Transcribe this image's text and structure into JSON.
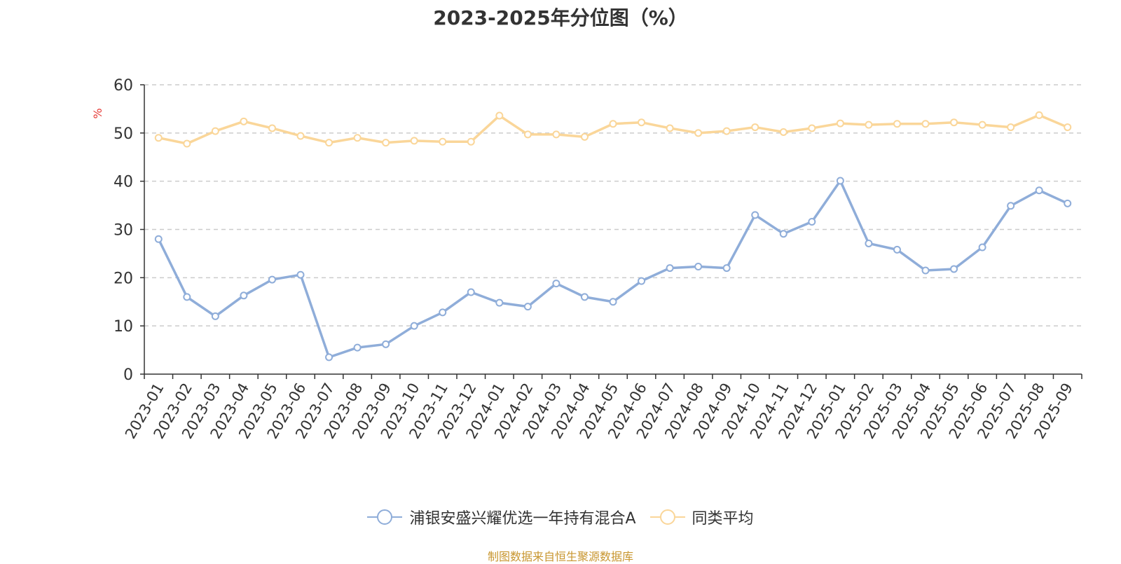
{
  "chart_data": {
    "type": "line",
    "title": "2023-2025年分位图（%）",
    "ylabel": "%",
    "xlabel": "",
    "ylim": [
      0,
      60
    ],
    "yticks": [
      0,
      10,
      20,
      30,
      40,
      50,
      60
    ],
    "grid": true,
    "legend_position": "bottom",
    "categories": [
      "2023-01",
      "2023-02",
      "2023-03",
      "2023-04",
      "2023-05",
      "2023-06",
      "2023-07",
      "2023-08",
      "2023-09",
      "2023-10",
      "2023-11",
      "2023-12",
      "2024-01",
      "2024-02",
      "2024-03",
      "2024-04",
      "2024-05",
      "2024-06",
      "2024-07",
      "2024-08",
      "2024-09",
      "2024-10",
      "2024-11",
      "2024-12",
      "2025-01",
      "2025-02",
      "2025-03",
      "2025-04",
      "2025-05",
      "2025-06",
      "2025-07",
      "2025-08",
      "2025-09"
    ],
    "series": [
      {
        "name": "浦银安盛兴耀优选一年持有混合A",
        "color": "#8fadd9",
        "values": [
          28.0,
          16.0,
          12.0,
          16.3,
          19.6,
          20.6,
          3.5,
          5.5,
          6.2,
          10.0,
          12.8,
          17.0,
          14.8,
          14.0,
          18.8,
          16.0,
          15.0,
          19.3,
          22.0,
          22.3,
          22.0,
          33.0,
          29.1,
          31.6,
          40.1,
          27.1,
          25.8,
          21.5,
          21.8,
          26.3,
          34.9,
          38.1,
          35.4
        ]
      },
      {
        "name": "同类平均",
        "color": "#fad699",
        "values": [
          49.0,
          47.8,
          50.4,
          52.4,
          51.0,
          49.4,
          48.0,
          49.0,
          48.0,
          48.4,
          48.2,
          48.2,
          53.6,
          49.7,
          49.7,
          49.2,
          51.9,
          52.2,
          51.0,
          50.0,
          50.4,
          51.2,
          50.2,
          51.0,
          52.0,
          51.7,
          51.9,
          51.9,
          52.2,
          51.7,
          51.2,
          53.7,
          51.2
        ]
      }
    ]
  },
  "footer": {
    "source": "制图数据来自恒生聚源数据库"
  }
}
